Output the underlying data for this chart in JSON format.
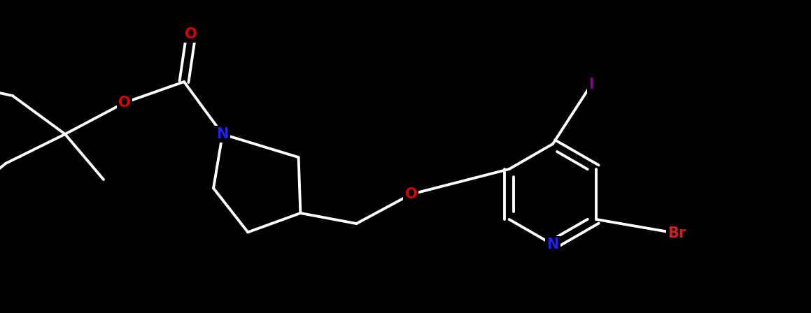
{
  "bg": "#000000",
  "bond_color": "#ffffff",
  "lw": 2.8,
  "doff": 0.055,
  "fig_w": 11.59,
  "fig_h": 4.48,
  "dpi": 100,
  "colors": {
    "N": "#2222ee",
    "O": "#dd0000",
    "I": "#880088",
    "Br": "#cc2222",
    "bg": "#000000"
  },
  "fs": 15
}
